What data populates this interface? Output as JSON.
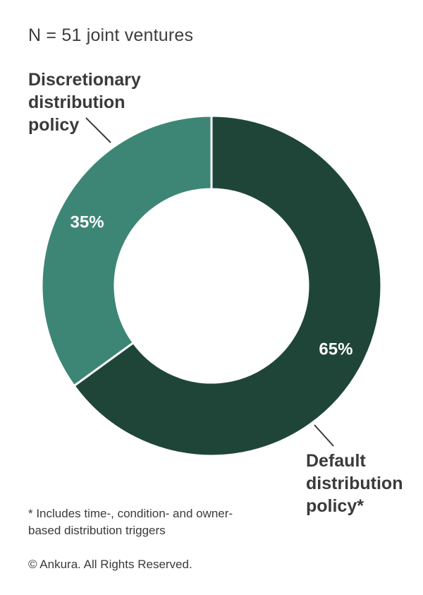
{
  "subtitle": "N = 51 joint ventures",
  "chart_data": {
    "type": "pie",
    "variant": "donut",
    "categories": [
      "Default distribution policy*",
      "Discretionary distribution policy"
    ],
    "values": [
      65,
      35
    ],
    "labels": [
      "65%",
      "35%"
    ],
    "colors": [
      "#1f4539",
      "#3d8675"
    ]
  },
  "callouts": {
    "discretionary": [
      "Discretionary",
      "distribution",
      "policy"
    ],
    "default": [
      "Default",
      "distribution",
      "policy*"
    ]
  },
  "footnote": {
    "line1": "* Includes time-, condition- and owner-",
    "line2": "based distribution triggers"
  },
  "copyright": "© Ankura. All Rights Reserved."
}
